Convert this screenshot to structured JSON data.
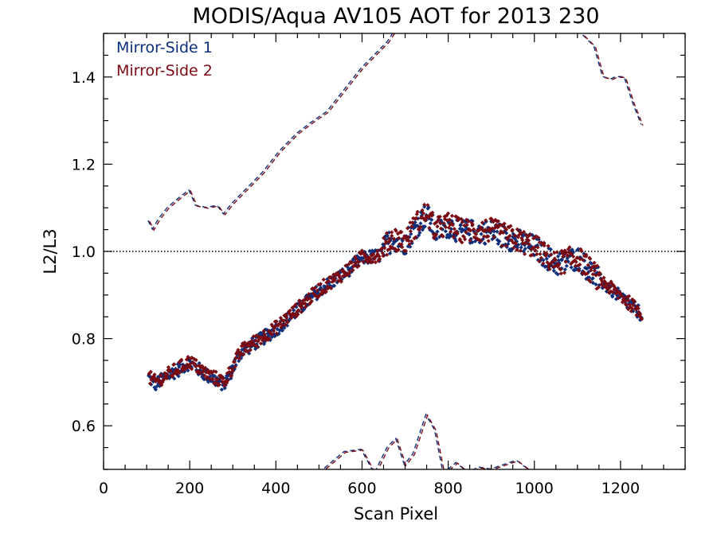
{
  "chart_data": {
    "type": "scatter",
    "title": "MODIS/Aqua AV105 AOT for 2013 230",
    "xlabel": "Scan Pixel",
    "ylabel": "L2/L3",
    "xlim": [
      0,
      1350
    ],
    "ylim": [
      0.5,
      1.5
    ],
    "x_ticks": [
      0,
      200,
      400,
      600,
      800,
      1000,
      1200
    ],
    "y_ticks": [
      0.6,
      0.8,
      1.0,
      1.2,
      1.4
    ],
    "x_minor_step": 50,
    "y_minor_step": 0.05,
    "reference_line": {
      "y": 1.0,
      "style": "dotted"
    },
    "legend_position": "top-left",
    "series": [
      {
        "name": "Mirror-Side 1",
        "color": "#0b2f7a",
        "marker": "diamond",
        "profile_x": [
          105,
          120,
          150,
          200,
          240,
          280,
          320,
          400,
          500,
          560,
          600,
          640,
          670,
          700,
          720,
          750,
          770,
          800,
          830,
          900,
          1000,
          1050,
          1100,
          1150,
          1200,
          1250
        ],
        "profile_y": [
          0.71,
          0.695,
          0.715,
          0.745,
          0.715,
          0.695,
          0.77,
          0.82,
          0.91,
          0.95,
          0.985,
          0.99,
          1.03,
          1.02,
          1.05,
          1.085,
          1.045,
          1.06,
          1.045,
          1.045,
          1.01,
          0.97,
          0.985,
          0.935,
          0.895,
          0.855
        ]
      },
      {
        "name": "Mirror-Side 2",
        "color": "#7b0a12",
        "marker": "diamond",
        "profile_x": [
          105,
          120,
          150,
          200,
          240,
          280,
          320,
          400,
          500,
          560,
          600,
          640,
          670,
          700,
          720,
          750,
          770,
          800,
          830,
          900,
          1000,
          1050,
          1100,
          1150,
          1200,
          1250
        ],
        "profile_y": [
          0.712,
          0.7,
          0.718,
          0.748,
          0.718,
          0.7,
          0.772,
          0.825,
          0.912,
          0.952,
          0.987,
          0.992,
          1.032,
          1.022,
          1.055,
          1.09,
          1.05,
          1.062,
          1.048,
          1.048,
          1.012,
          0.972,
          0.987,
          0.937,
          0.898,
          0.858
        ]
      }
    ],
    "bounds": [
      {
        "name": "upper",
        "x": [
          105,
          115,
          130,
          150,
          180,
          200,
          215,
          240,
          265,
          280,
          300,
          330,
          370,
          410,
          450,
          490,
          520,
          560,
          600,
          630,
          660,
          680,
          1100,
          1120,
          1140,
          1160,
          1180,
          1190,
          1210,
          1230,
          1250
        ],
        "y": [
          1.07,
          1.05,
          1.075,
          1.1,
          1.125,
          1.14,
          1.105,
          1.1,
          1.105,
          1.085,
          1.11,
          1.14,
          1.18,
          1.23,
          1.27,
          1.3,
          1.32,
          1.37,
          1.42,
          1.45,
          1.48,
          1.51,
          1.51,
          1.49,
          1.47,
          1.4,
          1.395,
          1.4,
          1.4,
          1.34,
          1.29
        ]
      },
      {
        "name": "lower",
        "x": [
          500,
          530,
          560,
          600,
          630,
          660,
          680,
          700,
          720,
          750,
          770,
          790,
          820,
          850,
          870,
          900,
          930,
          960,
          980,
          1000
        ],
        "y": [
          0.49,
          0.515,
          0.54,
          0.545,
          0.49,
          0.55,
          0.57,
          0.51,
          0.535,
          0.625,
          0.59,
          0.49,
          0.515,
          0.49,
          0.505,
          0.5,
          0.51,
          0.52,
          0.505,
          0.49
        ]
      }
    ]
  }
}
